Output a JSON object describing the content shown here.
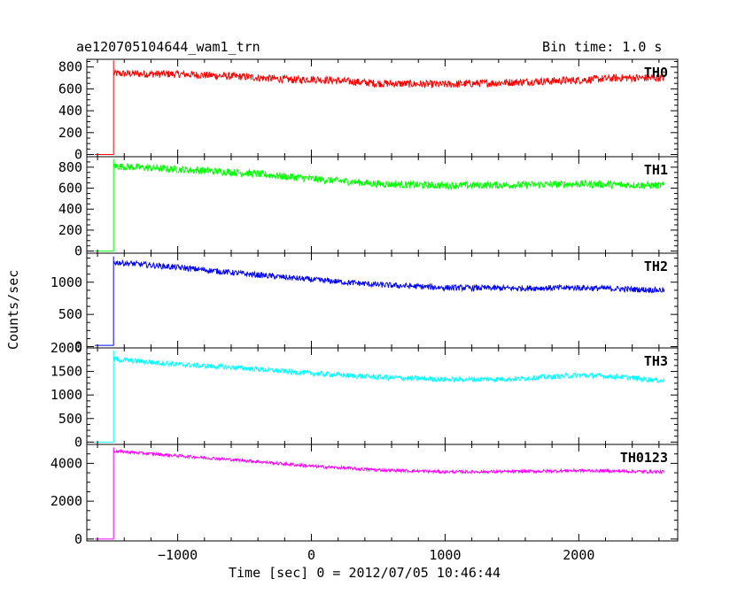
{
  "chart_data": {
    "type": "line",
    "title_left": "ae120705104644_wam1_trn",
    "title_right": "Bin time: 1.0 s",
    "xlabel": "Time [sec] 0 = 2012/07/05 10:46:44",
    "ylabel": "Counts/sec",
    "xlim": [
      -1680,
      2740
    ],
    "x_ticks": [
      -1000,
      0,
      1000,
      2000
    ],
    "x_tick_labels": [
      "−1000",
      "0",
      "1000",
      "2000"
    ],
    "grid": false,
    "panels": [
      {
        "name": "TH0",
        "color": "#ff0000",
        "ylim": [
          -20,
          870
        ],
        "y_ticks": [
          0,
          200,
          400,
          600,
          800
        ],
        "y_tick_labels": [
          "0",
          "200",
          "400",
          "600",
          "800"
        ],
        "pre_level": 0,
        "onset_x": -1480,
        "noise": 35,
        "peak": 860,
        "curve": [
          [
            -1480,
            740
          ],
          [
            -1000,
            735
          ],
          [
            -500,
            710
          ],
          [
            -100,
            680
          ],
          [
            0,
            690
          ],
          [
            500,
            650
          ],
          [
            1000,
            640
          ],
          [
            1500,
            660
          ],
          [
            2000,
            680
          ],
          [
            2300,
            700
          ],
          [
            2640,
            700
          ]
        ]
      },
      {
        "name": "TH1",
        "color": "#00ff00",
        "ylim": [
          -20,
          900
        ],
        "y_ticks": [
          0,
          200,
          400,
          600,
          800
        ],
        "y_tick_labels": [
          "0",
          "200",
          "400",
          "600",
          "800"
        ],
        "pre_level": 0,
        "onset_x": -1480,
        "noise": 35,
        "peak": 880,
        "curve": [
          [
            -1480,
            810
          ],
          [
            -1000,
            780
          ],
          [
            -500,
            745
          ],
          [
            0,
            690
          ],
          [
            500,
            640
          ],
          [
            1000,
            625
          ],
          [
            1500,
            630
          ],
          [
            2000,
            640
          ],
          [
            2640,
            625
          ]
        ]
      },
      {
        "name": "TH2",
        "color": "#0000ff",
        "ylim": [
          -20,
          1450
        ],
        "y_ticks": [
          0,
          500,
          1000
        ],
        "y_tick_labels": [
          "0",
          "500",
          "1000"
        ],
        "pre_level": 20,
        "onset_x": -1480,
        "noise": 45,
        "peak": 1400,
        "curve": [
          [
            -1480,
            1310
          ],
          [
            -1000,
            1230
          ],
          [
            -500,
            1130
          ],
          [
            0,
            1040
          ],
          [
            500,
            960
          ],
          [
            1000,
            915
          ],
          [
            1500,
            905
          ],
          [
            2000,
            915
          ],
          [
            2640,
            875
          ]
        ]
      },
      {
        "name": "TH3",
        "color": "#00ffff",
        "ylim": [
          -50,
          2000
        ],
        "y_ticks": [
          0,
          500,
          1000,
          1500,
          2000
        ],
        "y_tick_labels": [
          "0",
          "500",
          "1000",
          "1500",
          "2000"
        ],
        "pre_level": 0,
        "onset_x": -1480,
        "noise": 55,
        "peak": 1950,
        "curve": [
          [
            -1480,
            1760
          ],
          [
            -1000,
            1650
          ],
          [
            -500,
            1570
          ],
          [
            0,
            1460
          ],
          [
            500,
            1380
          ],
          [
            1000,
            1330
          ],
          [
            1500,
            1340
          ],
          [
            2000,
            1420
          ],
          [
            2300,
            1390
          ],
          [
            2640,
            1300
          ]
        ]
      },
      {
        "name": "TH0123",
        "color": "#ff00ff",
        "ylim": [
          -100,
          5000
        ],
        "y_ticks": [
          0,
          2000,
          4000
        ],
        "y_tick_labels": [
          "0",
          "2000",
          "4000"
        ],
        "pre_level": 0,
        "onset_x": -1480,
        "noise": 80,
        "peak": 4850,
        "curve": [
          [
            -1480,
            4650
          ],
          [
            -1000,
            4400
          ],
          [
            -500,
            4150
          ],
          [
            0,
            3850
          ],
          [
            500,
            3650
          ],
          [
            1000,
            3550
          ],
          [
            1500,
            3560
          ],
          [
            2000,
            3620
          ],
          [
            2640,
            3550
          ]
        ]
      }
    ]
  }
}
